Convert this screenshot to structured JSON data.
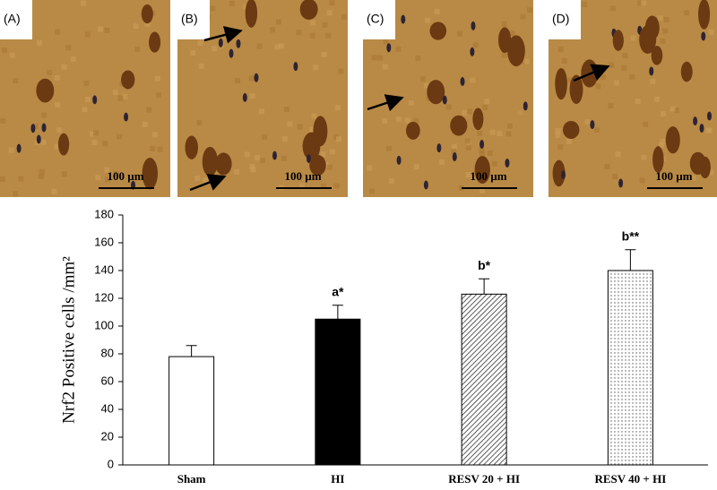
{
  "panels": [
    {
      "label": "(A)",
      "scale": "100 µm"
    },
    {
      "label": "(B)",
      "scale": "100 µm"
    },
    {
      "label": "(C)",
      "scale": "100 µm"
    },
    {
      "label": "(D)",
      "scale": "100 µm"
    }
  ],
  "chart_data": {
    "type": "bar",
    "y_label": "Nrf2 Positive cells /mm²",
    "categories": [
      "Sham",
      "HI",
      "RESV 20 + HI",
      "RESV 40 + HI"
    ],
    "values": [
      78,
      105,
      123,
      140
    ],
    "errors": [
      8,
      10,
      11,
      15
    ],
    "annotations": [
      null,
      "a*",
      "b*",
      "b**"
    ],
    "fills": [
      "white",
      "black",
      "hatch",
      "dots"
    ],
    "ylim": [
      0,
      180
    ],
    "yticks": [
      0,
      20,
      40,
      60,
      80,
      100,
      120,
      140,
      160,
      180
    ],
    "grid": false
  }
}
